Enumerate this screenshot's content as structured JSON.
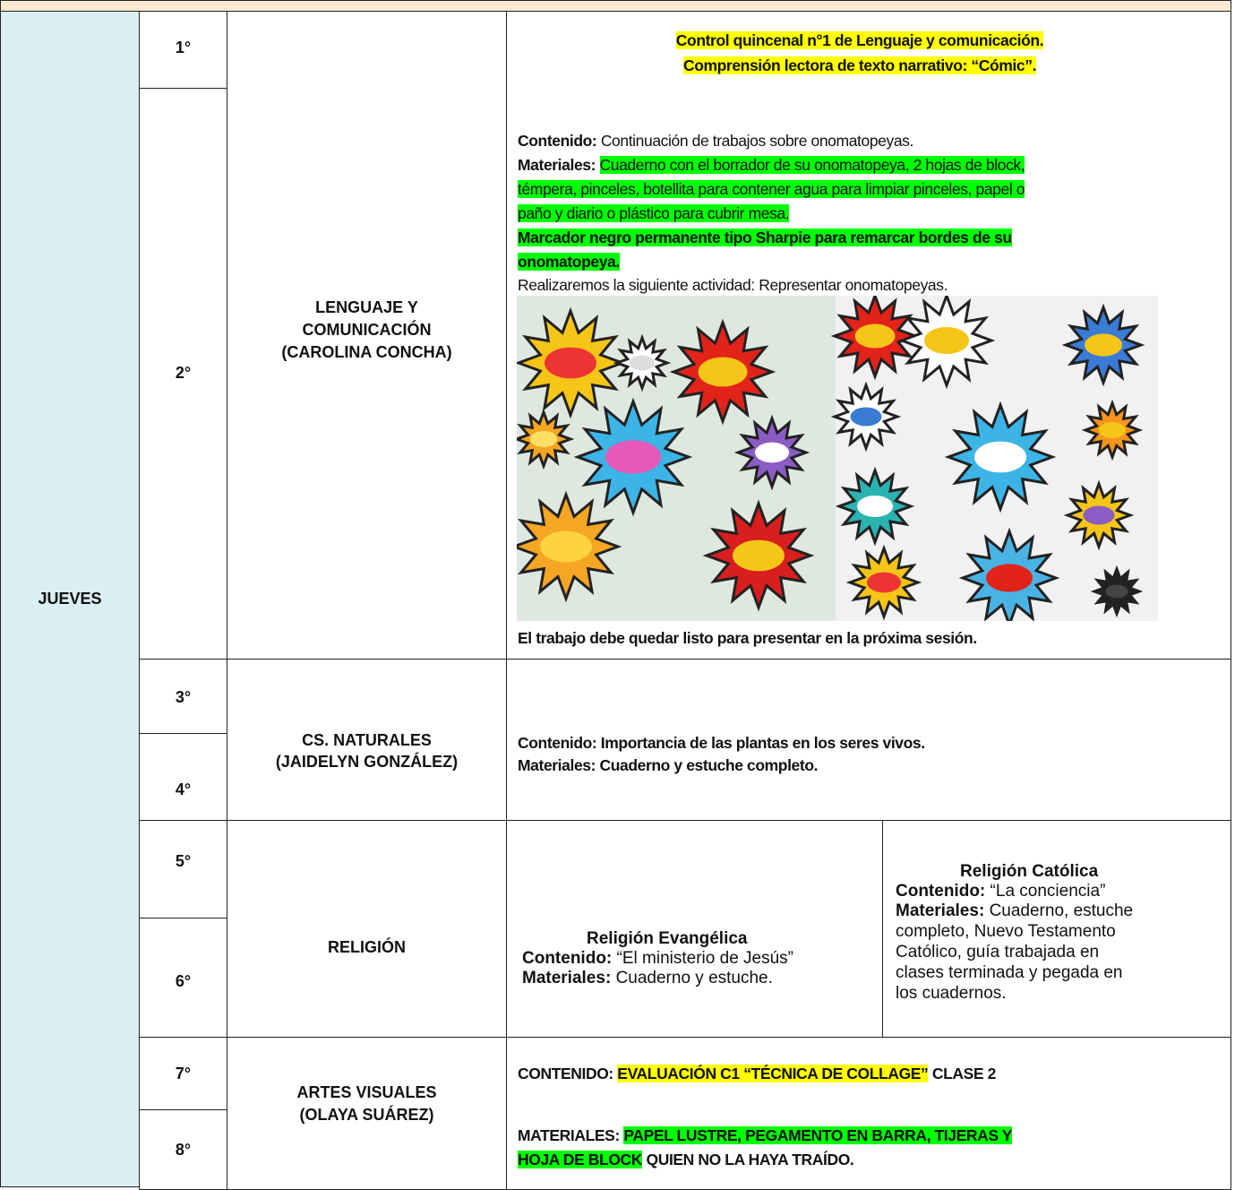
{
  "table": {
    "day": "JUEVES",
    "blocks": [
      {
        "hours": [
          "1°",
          "2°"
        ],
        "subject": [
          "LENGUAJE Y",
          "COMUNICACIÓN",
          "(CAROLINA CONCHA)"
        ],
        "control": [
          "Control quincenal n°1 de Lenguaje y comunicación.",
          "Comprensión lectora de texto narrativo: “Cómic”."
        ],
        "contenido_label": "Contenido:",
        "contenido": "Continuación de trabajos sobre onomatopeyas.",
        "materiales_label": "Materiales:",
        "materiales": [
          "Cuaderno con el borrador de su onomatopeya, 2 hojas de block,",
          "témpera, pinceles, botellita para contener agua para limpiar pinceles, papel o",
          "paño y diario o plástico para cubrir mesa."
        ],
        "marcador": [
          "Marcador negro permanente tipo Sharpie para remarcar bordes de su",
          "onomatopeya."
        ],
        "actividad": "Realizaremos la siguiente actividad: Representar onomatopeyas.",
        "cierre": "El trabajo debe quedar listo para presentar en la próxima sesión."
      },
      {
        "hours": [
          "3°",
          "4°"
        ],
        "subject": [
          "CS. NATURALES",
          "(JAIDELYN GONZÁLEZ)"
        ],
        "lines": [
          "Contenido: Importancia de las plantas en los seres vivos.",
          "Materiales: Cuaderno y estuche completo."
        ]
      },
      {
        "hours": [
          "5°",
          "6°"
        ],
        "subject": [
          "RELIGIÓN"
        ],
        "evangelica": {
          "title": "Religión Evangélica",
          "contenido_label": "Contenido:",
          "contenido": "“El ministerio de Jesús”",
          "materiales_label": "Materiales:",
          "materiales": "Cuaderno y estuche."
        },
        "catolica": {
          "title": "Religión Católica",
          "contenido_label": "Contenido:",
          "contenido": "“La conciencia”",
          "materiales_label": "Materiales:",
          "materiales": [
            "Cuaderno, estuche",
            "completo, Nuevo Testamento",
            "Católico, guía trabajada en",
            "clases terminada y pegada en",
            "los cuadernos."
          ]
        }
      },
      {
        "hours": [
          "7°",
          "8°"
        ],
        "subject": [
          "ARTES VISUALES",
          "(OLAYA SUÁREZ)"
        ],
        "contenido_label": "CONTENIDO:",
        "contenido_highlight": "EVALUACIÓN C1 “TÉCNICA DE COLLAGE”",
        "contenido_rest": "CLASE 2",
        "materiales_label": "MATERIALES:",
        "materiales_highlight": [
          "PAPEL LUSTRE, PEGAMENTO EN BARRA, TIJERAS Y",
          "HOJA DE BLOCK"
        ],
        "materiales_rest": "QUIEN NO LA HAYA TRAÍDO."
      }
    ]
  }
}
